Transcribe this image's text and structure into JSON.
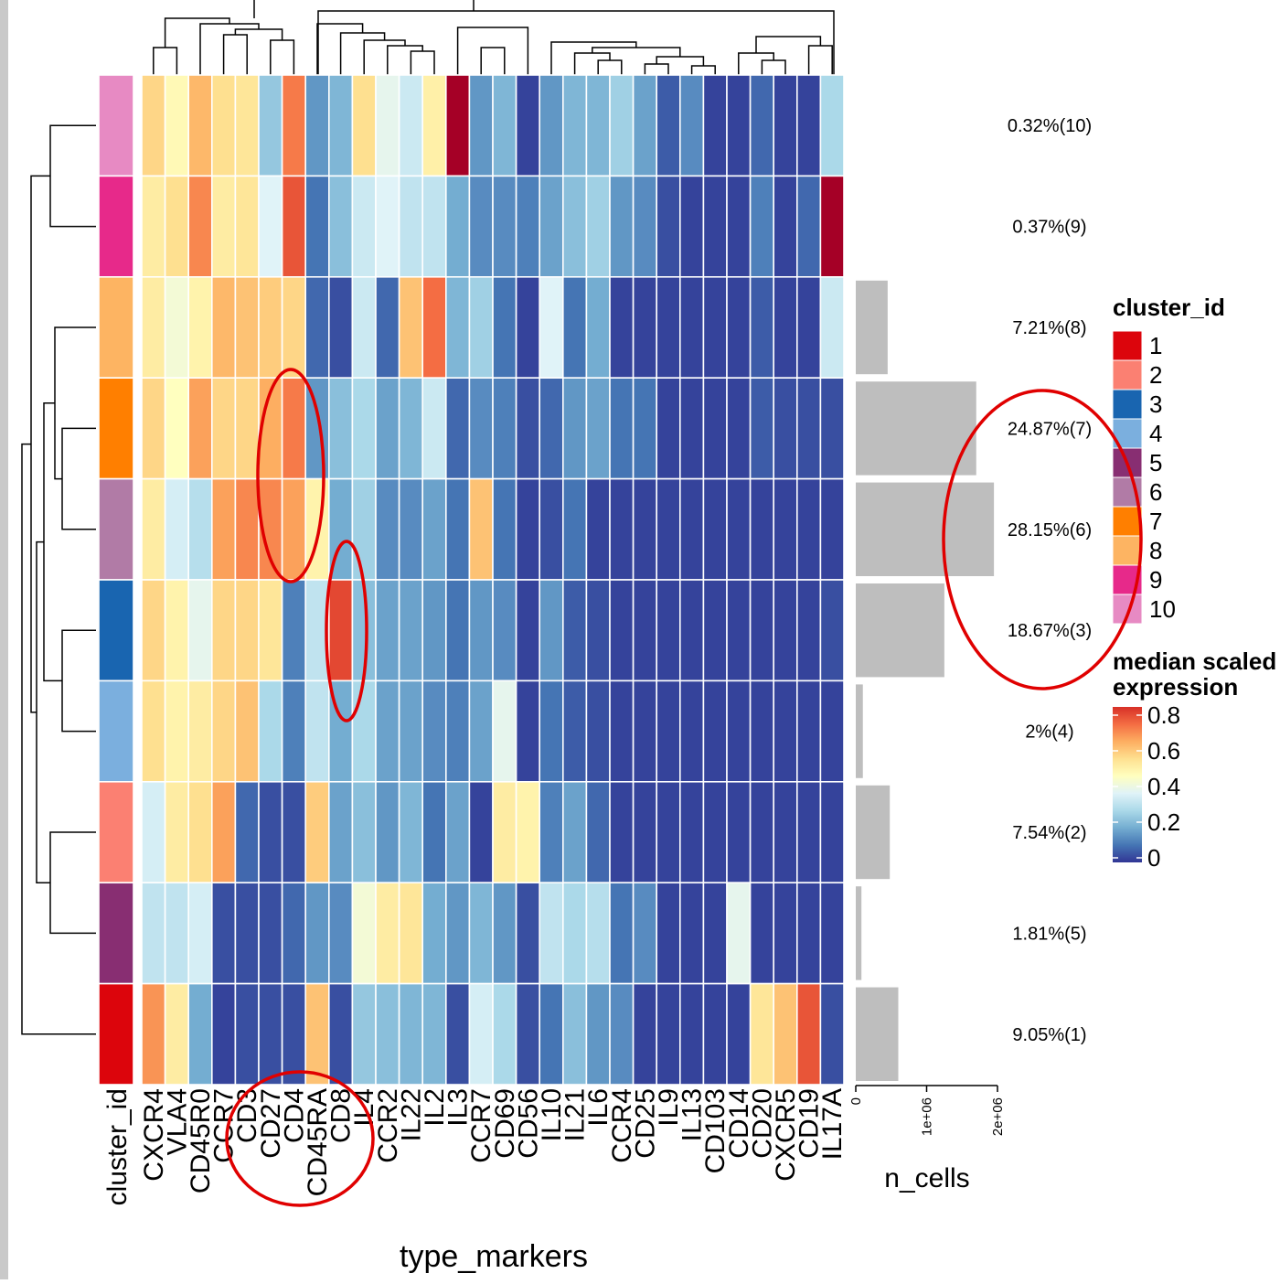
{
  "chart_data": {
    "type": "heatmap",
    "xlabel": "type_markers",
    "row_annotation_label": "cluster_id",
    "markers": [
      "CXCR4",
      "VLA4",
      "CD45R0",
      "CCR7",
      "CD3",
      "CD27",
      "CD4",
      "CD45RA",
      "CD8",
      "IL4",
      "CCR2",
      "IL22",
      "IL2",
      "IL3",
      "CCR7",
      "CD69",
      "CD56",
      "IL10",
      "IL21",
      "IL6",
      "CCR4",
      "CD25",
      "IL9",
      "IL13",
      "CD103",
      "CD14",
      "CD20",
      "CXCR5",
      "CD19",
      "IL17A"
    ],
    "rows": [
      {
        "cluster": "10",
        "label": "0.32%(10)",
        "n_cells": 0,
        "values": [
          0.62,
          0.52,
          0.68,
          0.6,
          0.58,
          0.26,
          0.78,
          0.16,
          0.22,
          0.6,
          0.42,
          0.36,
          0.55,
          1.0,
          0.16,
          0.22,
          0.02,
          0.16,
          0.22,
          0.22,
          0.28,
          0.18,
          0.06,
          0.14,
          0.02,
          0.02,
          0.08,
          0.02,
          0.02,
          0.3
        ]
      },
      {
        "cluster": "9",
        "label": "0.37%(9)",
        "n_cells": 0,
        "values": [
          0.56,
          0.6,
          0.76,
          0.56,
          0.58,
          0.4,
          0.84,
          0.1,
          0.24,
          0.36,
          0.4,
          0.34,
          0.34,
          0.2,
          0.14,
          0.14,
          0.12,
          0.18,
          0.24,
          0.28,
          0.16,
          0.14,
          0.04,
          0.02,
          0.02,
          0.02,
          0.12,
          0.02,
          0.08,
          1.0
        ]
      },
      {
        "cluster": "8",
        "label": "7.21%(8)",
        "n_cells": 450000,
        "values": [
          0.56,
          0.46,
          0.54,
          0.68,
          0.66,
          0.64,
          0.62,
          0.08,
          0.04,
          0.36,
          0.08,
          0.66,
          0.8,
          0.22,
          0.28,
          0.1,
          0.02,
          0.4,
          0.1,
          0.2,
          0.02,
          0.02,
          0.02,
          0.02,
          0.02,
          0.02,
          0.06,
          0.02,
          0.02,
          0.36
        ]
      },
      {
        "cluster": "7",
        "label": "24.87%(7)",
        "n_cells": 1700000,
        "values": [
          0.62,
          0.5,
          0.72,
          0.62,
          0.62,
          0.7,
          0.78,
          0.16,
          0.24,
          0.3,
          0.18,
          0.22,
          0.36,
          0.08,
          0.14,
          0.12,
          0.04,
          0.08,
          0.16,
          0.18,
          0.1,
          0.1,
          0.02,
          0.02,
          0.02,
          0.02,
          0.06,
          0.04,
          0.04,
          0.04
        ]
      },
      {
        "cluster": "6",
        "label": "28.15%(6)",
        "n_cells": 1950000,
        "values": [
          0.56,
          0.38,
          0.32,
          0.72,
          0.76,
          0.76,
          0.72,
          0.54,
          0.2,
          0.28,
          0.14,
          0.14,
          0.18,
          0.1,
          0.66,
          0.1,
          0.02,
          0.04,
          0.1,
          0.02,
          0.02,
          0.02,
          0.02,
          0.02,
          0.02,
          0.02,
          0.02,
          0.02,
          0.02,
          0.02
        ]
      },
      {
        "cluster": "3",
        "label": "18.67%(3)",
        "n_cells": 1250000,
        "values": [
          0.62,
          0.54,
          0.42,
          0.62,
          0.62,
          0.58,
          0.12,
          0.34,
          0.86,
          0.24,
          0.18,
          0.18,
          0.16,
          0.1,
          0.16,
          0.14,
          0.02,
          0.16,
          0.06,
          0.04,
          0.02,
          0.02,
          0.02,
          0.02,
          0.02,
          0.02,
          0.02,
          0.02,
          0.02,
          0.04
        ]
      },
      {
        "cluster": "4",
        "label": "2%(4)",
        "n_cells": 100000,
        "values": [
          0.6,
          0.54,
          0.56,
          0.62,
          0.66,
          0.3,
          0.12,
          0.34,
          0.2,
          0.3,
          0.18,
          0.18,
          0.14,
          0.12,
          0.18,
          0.42,
          0.02,
          0.1,
          0.06,
          0.04,
          0.02,
          0.02,
          0.02,
          0.02,
          0.02,
          0.02,
          0.02,
          0.02,
          0.02,
          0.02
        ]
      },
      {
        "cluster": "2",
        "label": "7.54%(2)",
        "n_cells": 480000,
        "values": [
          0.38,
          0.56,
          0.6,
          0.72,
          0.08,
          0.04,
          0.04,
          0.64,
          0.18,
          0.24,
          0.16,
          0.22,
          0.1,
          0.18,
          0.02,
          0.56,
          0.54,
          0.12,
          0.18,
          0.08,
          0.02,
          0.02,
          0.02,
          0.02,
          0.02,
          0.02,
          0.02,
          0.02,
          0.02,
          0.02
        ]
      },
      {
        "cluster": "5",
        "label": "1.81%(5)",
        "n_cells": 80000,
        "values": [
          0.34,
          0.34,
          0.38,
          0.04,
          0.04,
          0.04,
          0.08,
          0.16,
          0.14,
          0.46,
          0.56,
          0.58,
          0.2,
          0.16,
          0.22,
          0.16,
          0.04,
          0.34,
          0.3,
          0.32,
          0.1,
          0.14,
          0.02,
          0.02,
          0.02,
          0.42,
          0.02,
          0.02,
          0.02,
          0.02
        ]
      },
      {
        "cluster": "1",
        "label": "9.05%(1)",
        "n_cells": 600000,
        "values": [
          0.74,
          0.56,
          0.2,
          0.02,
          0.04,
          0.04,
          0.04,
          0.66,
          0.04,
          0.26,
          0.24,
          0.22,
          0.22,
          0.04,
          0.38,
          0.3,
          0.04,
          0.1,
          0.24,
          0.16,
          0.14,
          0.02,
          0.02,
          0.02,
          0.02,
          0.02,
          0.58,
          0.66,
          0.84,
          0.04
        ]
      }
    ],
    "bar_axis": {
      "label": "n_cells",
      "ticks": [
        0,
        1000000,
        2000000
      ],
      "tick_labels": [
        "0",
        "1e+06",
        "2e+06"
      ],
      "max": 2000000
    },
    "color_scale": {
      "min": 0,
      "max": 0.8,
      "stops": [
        "#313695",
        "#4575b4",
        "#74add1",
        "#abd9e9",
        "#e0f3f8",
        "#ffffbf",
        "#fee090",
        "#fdae61",
        "#f46d43",
        "#d73027",
        "#a50026"
      ]
    }
  },
  "cluster_colors": {
    "1": "#dc050c",
    "2": "#fb8072",
    "3": "#1965b0",
    "4": "#7bafde",
    "5": "#882e72",
    "6": "#b17ba6",
    "7": "#ff7f00",
    "8": "#fdb462",
    "9": "#e7298a",
    "10": "#e78ac3"
  },
  "legend": {
    "cluster_title": "cluster_id",
    "cluster_items": [
      "1",
      "2",
      "3",
      "4",
      "5",
      "6",
      "7",
      "8",
      "9",
      "10"
    ],
    "expression_title": [
      "median scaled",
      "expression"
    ],
    "expression_ticks": [
      "0.8",
      "0.6",
      "0.4",
      "0.2",
      "0"
    ]
  },
  "annotation_color": "#e00000"
}
